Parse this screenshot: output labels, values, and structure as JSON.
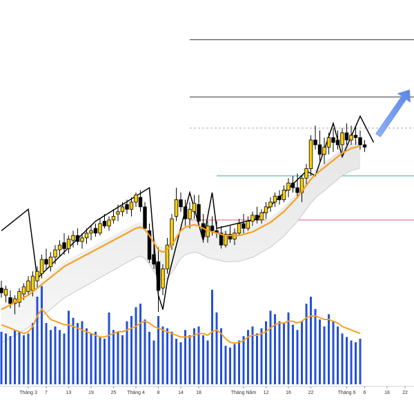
{
  "chart_data": {
    "type": "candlestick",
    "title": "",
    "xlabel": "",
    "ylabel": "",
    "grid": false,
    "x_tick_labels": [
      {
        "index": 6,
        "label": "Tháng 3"
      },
      {
        "index": 10,
        "label": "7"
      },
      {
        "index": 15,
        "label": "13"
      },
      {
        "index": 20,
        "label": "19"
      },
      {
        "index": 25,
        "label": "25"
      },
      {
        "index": 30,
        "label": "Tháng 4"
      },
      {
        "index": 35,
        "label": "8"
      },
      {
        "index": 40,
        "label": "14"
      },
      {
        "index": 44,
        "label": "18"
      },
      {
        "index": 54,
        "label": "Tháng Năm"
      },
      {
        "index": 59,
        "label": "12"
      },
      {
        "index": 64,
        "label": "16"
      },
      {
        "index": 69,
        "label": "22"
      },
      {
        "index": 77,
        "label": "Tháng 6"
      },
      {
        "index": 81,
        "label": "6"
      },
      {
        "index": 86,
        "label": "18"
      },
      {
        "index": 90,
        "label": "22"
      }
    ],
    "price_series": [
      {
        "o": 312,
        "h": 318,
        "l": 304,
        "c": 308
      },
      {
        "o": 306,
        "h": 314,
        "l": 300,
        "c": 311
      },
      {
        "o": 304,
        "h": 310,
        "l": 295,
        "c": 299
      },
      {
        "o": 299,
        "h": 306,
        "l": 290,
        "c": 303
      },
      {
        "o": 300,
        "h": 312,
        "l": 296,
        "c": 309
      },
      {
        "o": 307,
        "h": 316,
        "l": 302,
        "c": 313
      },
      {
        "o": 309,
        "h": 322,
        "l": 306,
        "c": 318
      },
      {
        "o": 310,
        "h": 326,
        "l": 305,
        "c": 322
      },
      {
        "o": 318,
        "h": 330,
        "l": 312,
        "c": 326
      },
      {
        "o": 324,
        "h": 340,
        "l": 320,
        "c": 336
      },
      {
        "o": 336,
        "h": 345,
        "l": 328,
        "c": 332
      },
      {
        "o": 330,
        "h": 342,
        "l": 326,
        "c": 338
      },
      {
        "o": 338,
        "h": 348,
        "l": 332,
        "c": 344
      },
      {
        "o": 344,
        "h": 352,
        "l": 338,
        "c": 348
      },
      {
        "o": 350,
        "h": 358,
        "l": 340,
        "c": 345
      },
      {
        "o": 345,
        "h": 356,
        "l": 341,
        "c": 353
      },
      {
        "o": 352,
        "h": 360,
        "l": 346,
        "c": 356
      },
      {
        "o": 356,
        "h": 362,
        "l": 348,
        "c": 351
      },
      {
        "o": 351,
        "h": 358,
        "l": 345,
        "c": 354
      },
      {
        "o": 354,
        "h": 362,
        "l": 349,
        "c": 358
      },
      {
        "o": 358,
        "h": 364,
        "l": 352,
        "c": 360
      },
      {
        "o": 362,
        "h": 366,
        "l": 355,
        "c": 358
      },
      {
        "o": 358,
        "h": 370,
        "l": 356,
        "c": 366
      },
      {
        "o": 368,
        "h": 374,
        "l": 362,
        "c": 364
      },
      {
        "o": 364,
        "h": 372,
        "l": 360,
        "c": 369
      },
      {
        "o": 369,
        "h": 378,
        "l": 366,
        "c": 372
      },
      {
        "o": 374,
        "h": 382,
        "l": 368,
        "c": 376
      },
      {
        "o": 376,
        "h": 384,
        "l": 372,
        "c": 380
      },
      {
        "o": 382,
        "h": 386,
        "l": 374,
        "c": 378
      },
      {
        "o": 378,
        "h": 388,
        "l": 372,
        "c": 384
      },
      {
        "o": 384,
        "h": 392,
        "l": 380,
        "c": 390
      },
      {
        "o": 388,
        "h": 394,
        "l": 376,
        "c": 380
      },
      {
        "o": 380,
        "h": 384,
        "l": 360,
        "c": 362
      },
      {
        "o": 360,
        "h": 366,
        "l": 333,
        "c": 336
      },
      {
        "o": 340,
        "h": 350,
        "l": 328,
        "c": 332
      },
      {
        "o": 334,
        "h": 346,
        "l": 292,
        "c": 310
      },
      {
        "o": 312,
        "h": 332,
        "l": 306,
        "c": 328
      },
      {
        "o": 328,
        "h": 354,
        "l": 324,
        "c": 348
      },
      {
        "o": 348,
        "h": 374,
        "l": 344,
        "c": 370
      },
      {
        "o": 372,
        "h": 396,
        "l": 368,
        "c": 386
      },
      {
        "o": 386,
        "h": 392,
        "l": 376,
        "c": 380
      },
      {
        "o": 380,
        "h": 386,
        "l": 364,
        "c": 370
      },
      {
        "o": 370,
        "h": 384,
        "l": 362,
        "c": 378
      },
      {
        "o": 376,
        "h": 390,
        "l": 370,
        "c": 383
      },
      {
        "o": 382,
        "h": 390,
        "l": 364,
        "c": 368
      },
      {
        "o": 366,
        "h": 374,
        "l": 350,
        "c": 355
      },
      {
        "o": 355,
        "h": 368,
        "l": 350,
        "c": 364
      },
      {
        "o": 364,
        "h": 372,
        "l": 356,
        "c": 360
      },
      {
        "o": 360,
        "h": 368,
        "l": 354,
        "c": 358
      },
      {
        "o": 358,
        "h": 364,
        "l": 345,
        "c": 348
      },
      {
        "o": 348,
        "h": 360,
        "l": 346,
        "c": 357
      },
      {
        "o": 357,
        "h": 364,
        "l": 350,
        "c": 353
      },
      {
        "o": 353,
        "h": 362,
        "l": 348,
        "c": 358
      },
      {
        "o": 358,
        "h": 370,
        "l": 356,
        "c": 366
      },
      {
        "o": 366,
        "h": 374,
        "l": 358,
        "c": 362
      },
      {
        "o": 362,
        "h": 372,
        "l": 360,
        "c": 368
      },
      {
        "o": 368,
        "h": 376,
        "l": 364,
        "c": 373
      },
      {
        "o": 373,
        "h": 380,
        "l": 366,
        "c": 369
      },
      {
        "o": 369,
        "h": 378,
        "l": 366,
        "c": 375
      },
      {
        "o": 375,
        "h": 384,
        "l": 370,
        "c": 380
      },
      {
        "o": 380,
        "h": 388,
        "l": 376,
        "c": 384
      },
      {
        "o": 384,
        "h": 392,
        "l": 380,
        "c": 389
      },
      {
        "o": 389,
        "h": 394,
        "l": 382,
        "c": 386
      },
      {
        "o": 386,
        "h": 398,
        "l": 384,
        "c": 394
      },
      {
        "o": 394,
        "h": 404,
        "l": 388,
        "c": 400
      },
      {
        "o": 400,
        "h": 406,
        "l": 392,
        "c": 396
      },
      {
        "o": 396,
        "h": 408,
        "l": 388,
        "c": 392
      },
      {
        "o": 392,
        "h": 406,
        "l": 384,
        "c": 404
      },
      {
        "o": 404,
        "h": 416,
        "l": 398,
        "c": 412
      },
      {
        "o": 412,
        "h": 440,
        "l": 406,
        "c": 436
      },
      {
        "o": 436,
        "h": 448,
        "l": 428,
        "c": 432
      },
      {
        "o": 432,
        "h": 444,
        "l": 418,
        "c": 424
      },
      {
        "o": 424,
        "h": 438,
        "l": 416,
        "c": 430
      },
      {
        "o": 430,
        "h": 442,
        "l": 424,
        "c": 438
      },
      {
        "o": 438,
        "h": 446,
        "l": 426,
        "c": 434
      },
      {
        "o": 436,
        "h": 444,
        "l": 428,
        "c": 432
      },
      {
        "o": 432,
        "h": 446,
        "l": 426,
        "c": 442
      },
      {
        "o": 442,
        "h": 450,
        "l": 432,
        "c": 436
      },
      {
        "o": 436,
        "h": 448,
        "l": 432,
        "c": 440
      },
      {
        "o": 440,
        "h": 448,
        "l": 432,
        "c": 438
      },
      {
        "o": 438,
        "h": 444,
        "l": 428,
        "c": 432
      },
      {
        "o": 432,
        "h": 436,
        "l": 426,
        "c": 430
      }
    ],
    "ma_price": [
      294,
      296,
      298,
      300,
      302,
      304,
      306,
      309,
      312,
      315,
      318,
      321,
      324,
      327,
      330,
      332,
      334,
      336,
      338,
      340,
      342,
      344,
      346,
      348,
      350,
      352,
      354,
      356,
      358,
      360,
      362,
      363,
      361,
      356,
      350,
      344,
      342,
      344,
      348,
      354,
      360,
      363,
      364,
      365,
      364,
      362,
      360,
      359,
      358,
      357,
      356,
      356,
      356,
      356,
      357,
      358,
      359,
      361,
      363,
      365,
      367,
      370,
      373,
      376,
      380,
      384,
      388,
      393,
      398,
      403,
      407,
      410,
      413,
      416,
      419,
      422,
      425,
      427,
      429,
      430,
      431
    ],
    "volume": [
      60,
      58,
      55,
      62,
      60,
      56,
      58,
      70,
      100,
      112,
      70,
      62,
      66,
      62,
      58,
      84,
      76,
      70,
      72,
      64,
      58,
      60,
      54,
      52,
      82,
      62,
      60,
      56,
      72,
      78,
      88,
      92,
      74,
      60,
      50,
      78,
      66,
      64,
      60,
      52,
      48,
      62,
      56,
      64,
      66,
      56,
      50,
      108,
      82,
      64,
      44,
      42,
      46,
      50,
      55,
      62,
      66,
      58,
      64,
      72,
      84,
      80,
      72,
      70,
      82,
      68,
      62,
      72,
      92,
      100,
      86,
      74,
      66,
      80,
      72,
      66,
      58,
      54,
      50,
      48,
      52
    ],
    "ma_volume": [
      68,
      66,
      64,
      62,
      60,
      58,
      60,
      66,
      78,
      86,
      80,
      74,
      72,
      70,
      68,
      68,
      66,
      64,
      62,
      60,
      58,
      56,
      54,
      54,
      56,
      58,
      60,
      60,
      62,
      64,
      66,
      70,
      72,
      70,
      66,
      64,
      62,
      60,
      58,
      56,
      54,
      54,
      54,
      56,
      58,
      58,
      56,
      60,
      62,
      58,
      52,
      48,
      47,
      48,
      50,
      54,
      56,
      56,
      58,
      60,
      64,
      68,
      70,
      70,
      72,
      72,
      70,
      72,
      76,
      78,
      78,
      76,
      74,
      74,
      72,
      70,
      66,
      64,
      62,
      60,
      58
    ],
    "horizontal_levels": [
      {
        "value": 520,
        "color": "#333333",
        "style": "solid",
        "from_index": 42
      },
      {
        "value": 472,
        "color": "#333333",
        "style": "solid",
        "from_index": 42
      },
      {
        "value": 446,
        "color": "#aaaaaa",
        "style": "dashed",
        "from_index": 42
      },
      {
        "value": 406,
        "color": "#2bb3a0",
        "style": "solid",
        "from_index": 48
      },
      {
        "value": 369,
        "color": "#d06070",
        "style": "solid",
        "from_index": 42
      }
    ],
    "zigzag": [
      {
        "i": 0,
        "v": 360
      },
      {
        "i": 6,
        "v": 378
      },
      {
        "i": 8,
        "v": 320
      },
      {
        "i": 21,
        "v": 368
      },
      {
        "i": 33,
        "v": 396
      },
      {
        "i": 35,
        "v": 306
      },
      {
        "i": 36,
        "v": 294
      },
      {
        "i": 37,
        "v": 318
      },
      {
        "i": 42,
        "v": 392
      },
      {
        "i": 45,
        "v": 352
      },
      {
        "i": 47,
        "v": 392
      },
      {
        "i": 48,
        "v": 362
      },
      {
        "i": 57,
        "v": 370
      },
      {
        "i": 68,
        "v": 410
      },
      {
        "i": 70,
        "v": 406
      },
      {
        "i": 74,
        "v": 450
      },
      {
        "i": 76,
        "v": 422
      },
      {
        "i": 80,
        "v": 456
      },
      {
        "i": 83,
        "v": 434
      }
    ],
    "forecast_arrow": {
      "from_index": 84,
      "from_value": 440,
      "to_index": 91,
      "to_value": 478
    },
    "colors": {
      "up_candle": "#ffd000",
      "down_candle": "#000000",
      "ma": "#f5a020",
      "band": "#e6e6e6",
      "volume": "#2450d8",
      "zigzag": "#000000",
      "arrow": "#7ea6f2"
    }
  }
}
